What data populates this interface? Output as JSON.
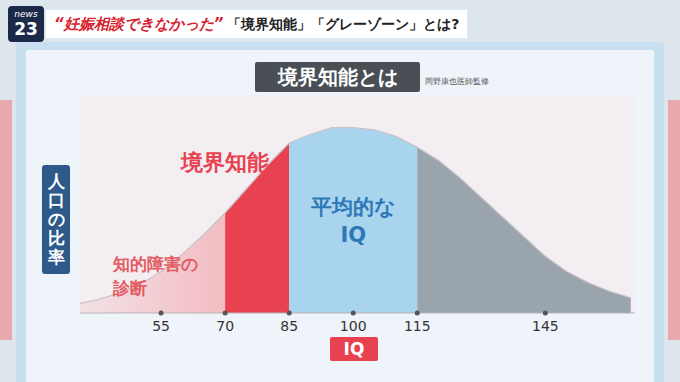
{
  "header": {
    "logo": [
      "news",
      "23"
    ],
    "quote": "“妊娠相談できなかった”",
    "title": "「境界知能」「グレーゾーン」とは?"
  },
  "chart_data": {
    "type": "area",
    "title": "境界知能とは",
    "subtitle": "岡野康也医師監修",
    "x_label": "IQ",
    "y_label": "人口の比率",
    "x": [
      35,
      40,
      45,
      50,
      55,
      60,
      65,
      70,
      75,
      80,
      85,
      90,
      95,
      100,
      105,
      110,
      115,
      120,
      125,
      130,
      135,
      140,
      145,
      150,
      155,
      160,
      165
    ],
    "values": [
      4,
      6,
      9,
      13,
      19,
      27,
      36,
      46,
      57,
      68,
      78,
      82,
      85,
      85,
      84,
      81,
      76,
      70,
      62,
      53,
      44,
      35,
      26,
      19,
      14,
      10,
      7
    ],
    "xlim": [
      36,
      166
    ],
    "ylim": [
      0,
      100
    ],
    "xticks": [
      55,
      70,
      85,
      100,
      115,
      145
    ],
    "tick_labels": "x",
    "grid": false,
    "color": "#c9c3c8",
    "bands": [
      {
        "label": "知的障害の\n診断",
        "x1": 70,
        "color": "#f2bcc2"
      },
      {
        "label": "境界知能",
        "x0": 70,
        "x1": 85,
        "color": "#e8414f"
      },
      {
        "label": "平均的な\nIQ",
        "x0": 85,
        "x1": 115,
        "color": "#a9d4ee"
      },
      {
        "x0": 115,
        "color": "#9aa4ac"
      }
    ]
  }
}
